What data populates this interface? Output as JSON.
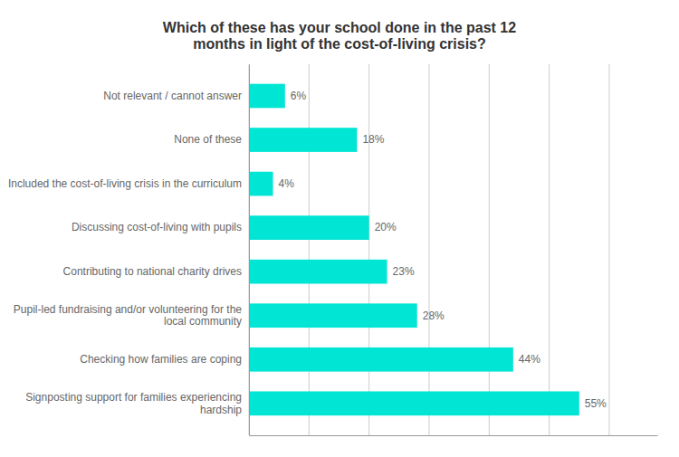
{
  "chart_data": {
    "type": "bar",
    "orientation": "horizontal",
    "title": "Which of these has your school done in the past 12\nmonths in light of the cost-of-living crisis?",
    "categories": [
      "Signposting support for families experiencing\nhardship",
      "Checking how families are coping",
      "Pupil-led fundraising and/or volunteering for the\nlocal community",
      "Contributing to national charity drives",
      "Discussing cost-of-living with pupils",
      "Included the cost-of-living crisis in the curriculum",
      "None of these",
      "Not relevant / cannot answer"
    ],
    "values": [
      55,
      44,
      28,
      23,
      20,
      4,
      18,
      6
    ],
    "value_labels": [
      "55%",
      "44%",
      "28%",
      "23%",
      "20%",
      "4%",
      "18%",
      "6%"
    ],
    "data_labels": true,
    "color": "#00e5d4",
    "xlim": [
      0,
      68
    ],
    "xticks": [
      0,
      10,
      20,
      30,
      40,
      50,
      60
    ],
    "grid": true,
    "tick_labels": "y"
  }
}
